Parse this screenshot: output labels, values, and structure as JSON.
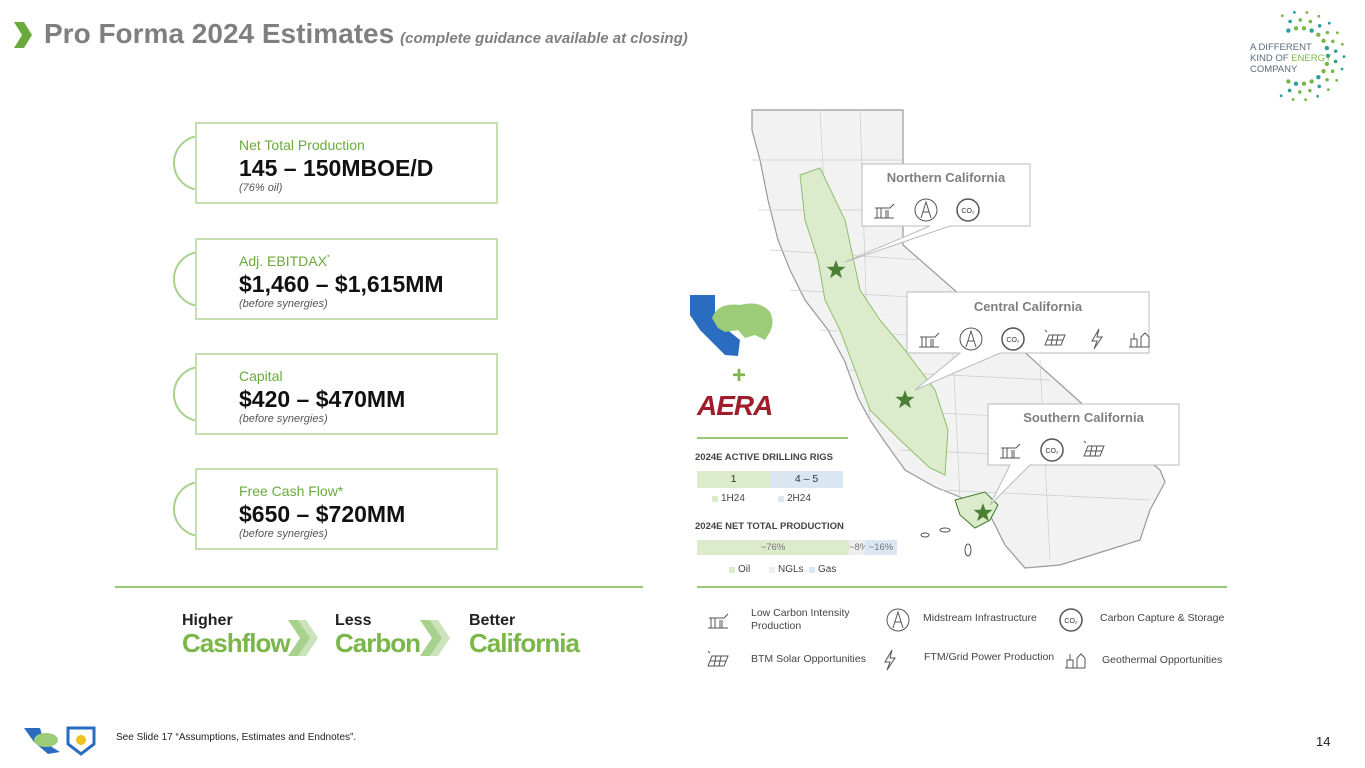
{
  "header": {
    "title": "Pro Forma 2024 Estimates",
    "subtitle": "(complete guidance available at closing)"
  },
  "logo": {
    "line1": "A DIFFERENT",
    "line2a": "KIND OF",
    "line2b": "ENERGY",
    "line3": "COMPANY"
  },
  "metrics": [
    {
      "label": "Net Total Production",
      "value": "145 – 150MBOE/D",
      "note": "(76% oil)"
    },
    {
      "label": "Adj. EBITDAX",
      "sup": "*",
      "value": "$1,460 – $1,615MM",
      "note": "(before synergies)"
    },
    {
      "label": "Capital",
      "value": "$420 – $470MM",
      "note": "(before synergies)"
    },
    {
      "label": "Free Cash Flow*",
      "value": "$650 – $720MM",
      "note": "(before synergies)"
    }
  ],
  "tagline": [
    {
      "top": "Higher",
      "bottom": "Cashflow"
    },
    {
      "top": "Less",
      "bottom": "Carbon"
    },
    {
      "top": "Better",
      "bottom": "California"
    }
  ],
  "plus": "+",
  "aera": "AERA",
  "regions": [
    "Northern California",
    "Central California",
    "Southern California"
  ],
  "co2": "CO₂",
  "rigs": {
    "title": "2024E ACTIVE DRILLING RIGS",
    "bars": [
      {
        "label": "1",
        "legend": "1H24"
      },
      {
        "label": "4 – 5",
        "legend": "2H24"
      }
    ]
  },
  "production": {
    "title": "2024E NET TOTAL PRODUCTION",
    "segments": [
      {
        "label": "~76%",
        "share": 76,
        "legend": "Oil"
      },
      {
        "label": "~8%",
        "share": 8,
        "legend": "NGLs"
      },
      {
        "label": "~16%",
        "share": 16,
        "legend": "Gas"
      }
    ]
  },
  "legend": [
    "Low Carbon Intensity Production",
    "Midstream Infrastructure",
    "Carbon Capture & Storage",
    "BTM Solar Opportunities",
    "FTM/Grid Power Production",
    "Geothermal Opportunities"
  ],
  "footer": {
    "note": "See Slide 17 “Assumptions, Estimates and Endnotes”.",
    "page": "14"
  }
}
